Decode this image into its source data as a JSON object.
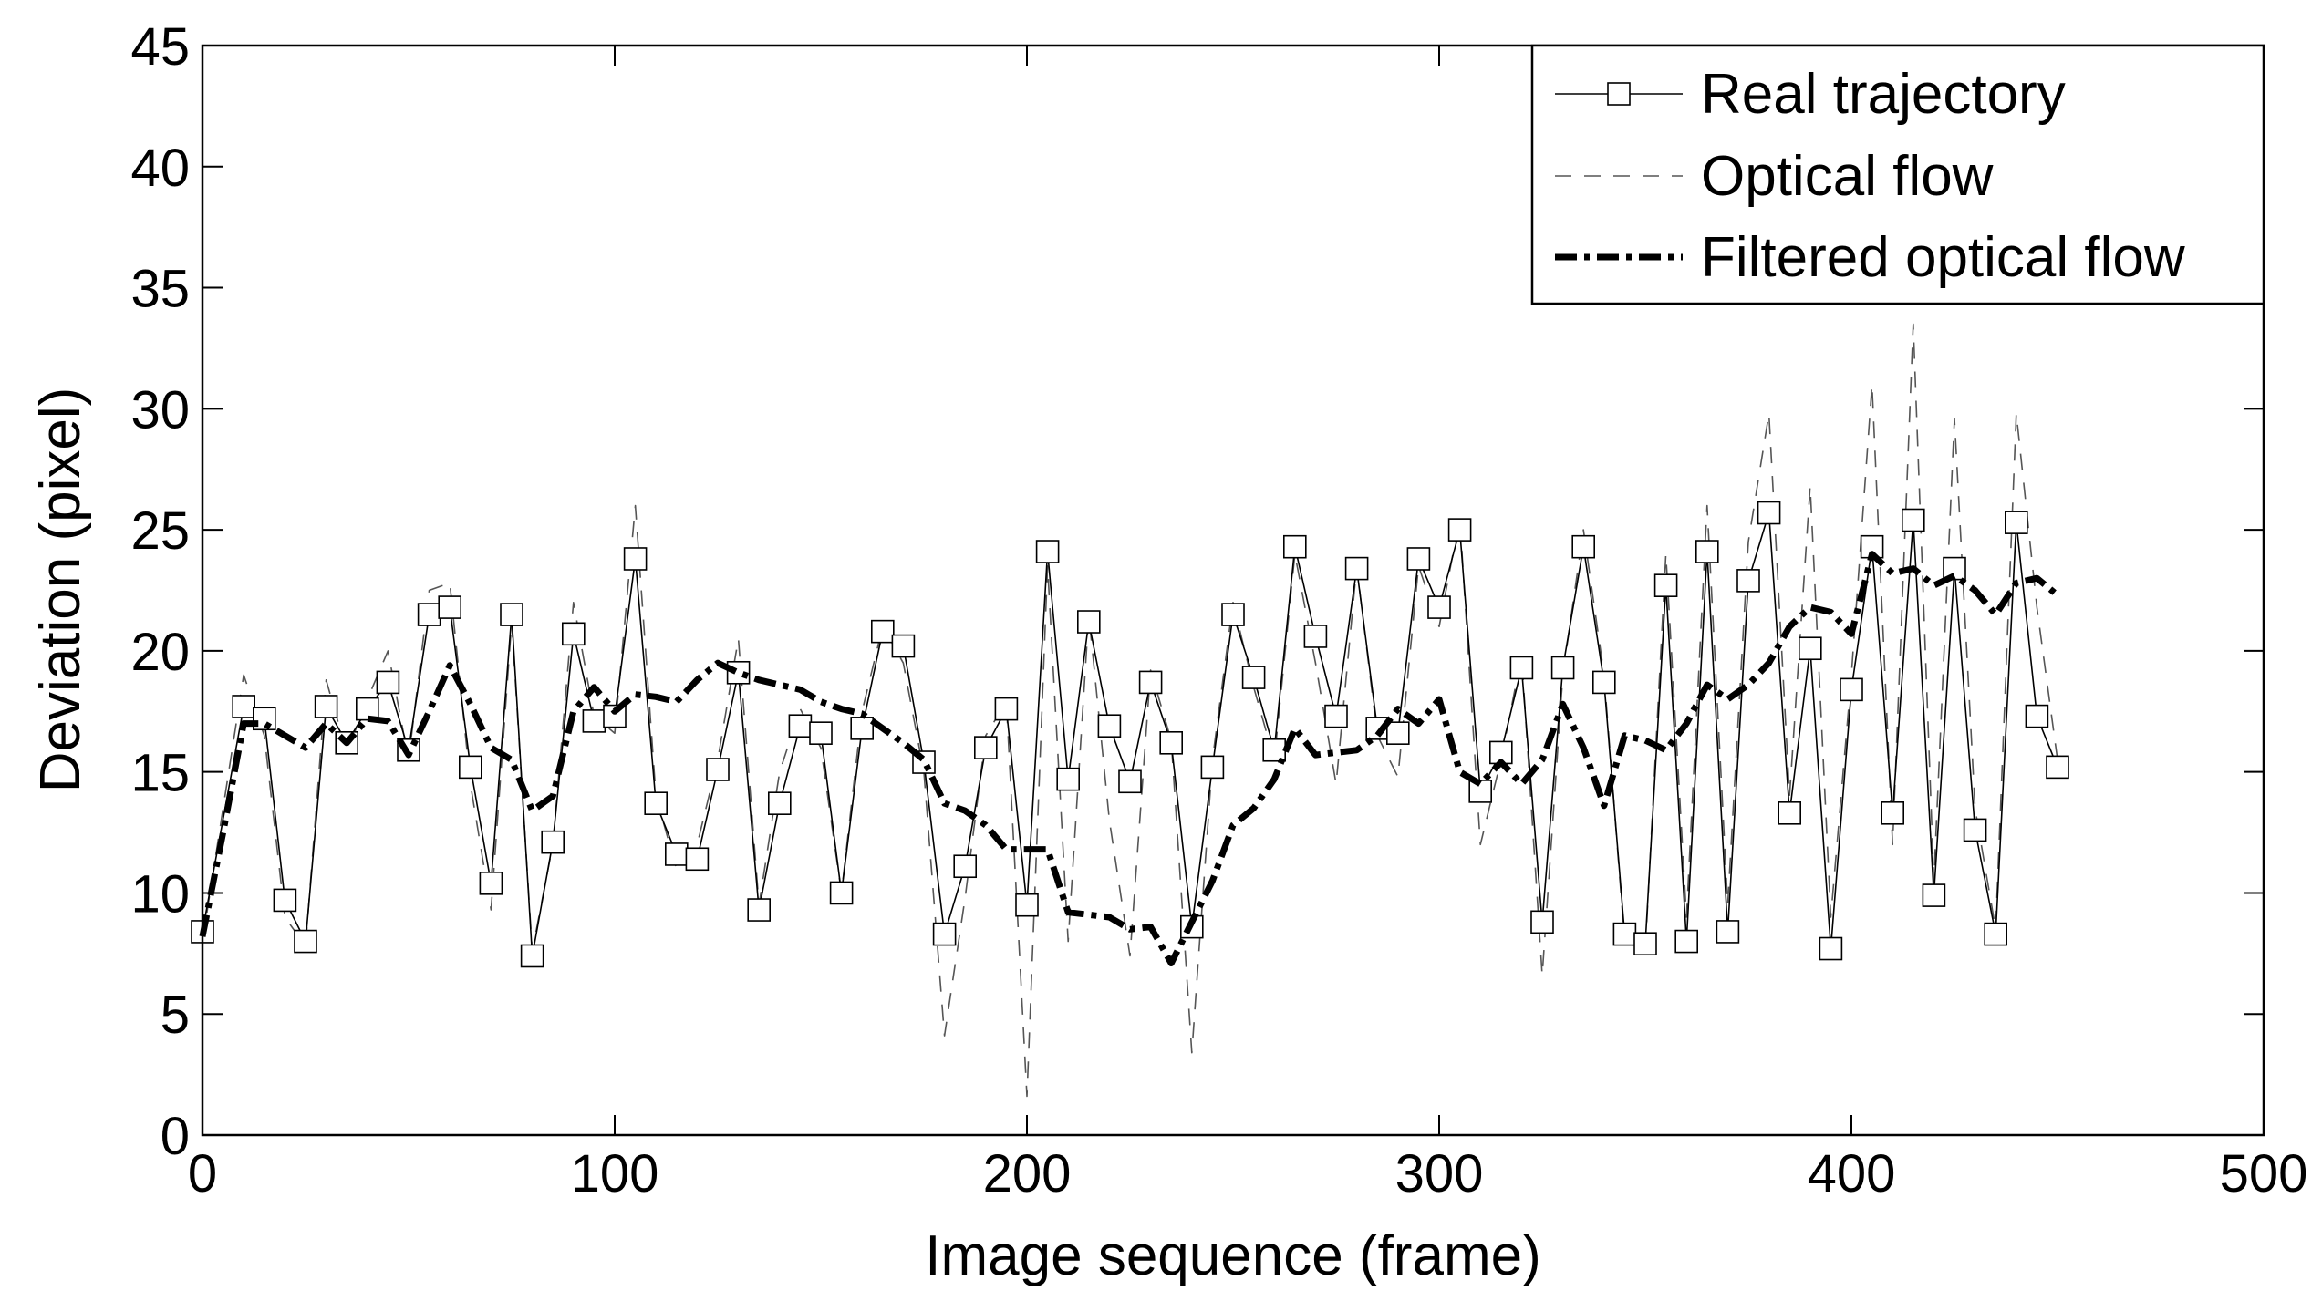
{
  "chart_data": {
    "type": "line",
    "title": "",
    "xlabel": "Image sequence (frame)",
    "ylabel": "Deviation (pixel)",
    "xlim": [
      0,
      500
    ],
    "ylim": [
      0,
      45
    ],
    "xticks": [
      "0",
      "100",
      "200",
      "300",
      "400",
      "500"
    ],
    "yticks": [
      "0",
      "5",
      "10",
      "15",
      "20",
      "25",
      "30",
      "35",
      "40",
      "45"
    ],
    "grid": false,
    "legend_position": "top-right",
    "series": [
      {
        "name": "Real trajectory",
        "style": "solid-square-markers",
        "color": "#000000",
        "x": [
          0,
          10,
          15,
          20,
          25,
          30,
          35,
          40,
          45,
          50,
          55,
          60,
          65,
          70,
          75,
          80,
          85,
          90,
          95,
          100,
          105,
          110,
          115,
          120,
          125,
          130,
          135,
          140,
          145,
          150,
          155,
          160,
          165,
          170,
          175,
          180,
          185,
          190,
          195,
          200,
          205,
          210,
          215,
          220,
          225,
          230,
          235,
          240,
          245,
          250,
          255,
          260,
          265,
          270,
          275,
          280,
          285,
          290,
          295,
          300,
          305,
          310,
          315,
          320,
          325,
          330,
          335,
          340,
          345,
          350,
          355,
          360,
          365,
          370,
          375,
          380,
          385,
          390,
          395,
          400,
          405,
          410,
          415,
          420,
          425,
          430,
          435,
          440,
          445,
          450
        ],
        "y": [
          8.4,
          17.7,
          17.2,
          9.7,
          8.0,
          17.7,
          16.2,
          17.6,
          18.7,
          15.9,
          21.5,
          21.8,
          15.2,
          10.4,
          21.5,
          7.4,
          12.1,
          20.7,
          17.1,
          17.3,
          23.8,
          13.7,
          11.6,
          11.4,
          15.1,
          19.1,
          9.3,
          13.7,
          16.9,
          16.6,
          10.0,
          16.8,
          20.8,
          20.2,
          15.4,
          8.3,
          11.1,
          16.0,
          17.6,
          9.5,
          24.1,
          14.7,
          21.2,
          16.9,
          14.6,
          18.7,
          16.2,
          8.6,
          15.2,
          21.5,
          18.9,
          15.9,
          24.3,
          20.6,
          17.3,
          23.4,
          16.8,
          16.6,
          23.8,
          21.8,
          25.0,
          14.2,
          15.8,
          19.3,
          8.8,
          19.3,
          24.3,
          18.7,
          8.3,
          7.9,
          22.7,
          8.0,
          24.1,
          8.4,
          22.9,
          25.7,
          13.3,
          20.1,
          7.7,
          18.4,
          24.3,
          13.3,
          25.4,
          9.9,
          23.4,
          12.6,
          8.3,
          25.3,
          17.3,
          15.2
        ]
      },
      {
        "name": "Optical flow",
        "style": "dashed",
        "color": "#555555",
        "x": [
          0,
          5,
          10,
          15,
          20,
          25,
          30,
          35,
          40,
          45,
          50,
          55,
          60,
          65,
          70,
          75,
          80,
          85,
          90,
          95,
          100,
          105,
          110,
          115,
          120,
          125,
          130,
          135,
          140,
          145,
          150,
          155,
          160,
          165,
          170,
          175,
          180,
          185,
          190,
          195,
          200,
          205,
          210,
          215,
          220,
          225,
          230,
          235,
          240,
          245,
          250,
          255,
          260,
          265,
          270,
          275,
          280,
          285,
          290,
          295,
          300,
          305,
          310,
          315,
          320,
          325,
          330,
          335,
          340,
          345,
          350,
          355,
          360,
          365,
          370,
          375,
          380,
          385,
          390,
          395,
          400,
          405,
          410,
          415,
          420,
          425,
          430,
          435,
          440,
          445,
          450
        ],
        "y": [
          8.0,
          13.5,
          19.0,
          16.5,
          9.0,
          7.8,
          18.8,
          15.8,
          18.0,
          20.0,
          15.5,
          22.5,
          22.8,
          14.5,
          9.3,
          21.2,
          7.6,
          12.0,
          22.0,
          17.3,
          16.6,
          26.0,
          14.0,
          11.0,
          12.0,
          15.5,
          20.5,
          9.5,
          15.0,
          17.6,
          16.0,
          10.0,
          17.5,
          21.0,
          19.5,
          15.0,
          4.1,
          9.8,
          16.5,
          17.9,
          1.6,
          23.5,
          8.0,
          21.5,
          13.0,
          7.4,
          19.2,
          16.3,
          3.4,
          15.5,
          22.0,
          18.5,
          15.5,
          24.0,
          19.5,
          14.5,
          23.5,
          16.5,
          14.8,
          23.5,
          21.0,
          25.5,
          12.0,
          15.5,
          19.8,
          6.6,
          19.0,
          25.0,
          19.0,
          8.0,
          7.6,
          24.0,
          9.0,
          26.0,
          9.5,
          24.5,
          29.8,
          14.0,
          26.8,
          9.0,
          19.0,
          31.0,
          12.0,
          33.5,
          10.5,
          29.6,
          13.5,
          8.5,
          29.8,
          21.8,
          15.5
        ]
      },
      {
        "name": "Filtered optical flow",
        "style": "thick-dash-dot",
        "color": "#000000",
        "x": [
          0,
          5,
          10,
          15,
          20,
          25,
          30,
          35,
          40,
          45,
          50,
          55,
          60,
          65,
          70,
          75,
          80,
          85,
          90,
          95,
          100,
          105,
          110,
          115,
          120,
          125,
          130,
          135,
          140,
          145,
          150,
          155,
          160,
          165,
          170,
          175,
          180,
          185,
          190,
          195,
          200,
          205,
          210,
          215,
          220,
          225,
          230,
          235,
          240,
          245,
          250,
          255,
          260,
          265,
          270,
          275,
          280,
          285,
          290,
          295,
          300,
          305,
          310,
          315,
          320,
          325,
          330,
          335,
          340,
          345,
          350,
          355,
          360,
          365,
          370,
          375,
          380,
          385,
          390,
          395,
          400,
          405,
          410,
          415,
          420,
          425,
          430,
          435,
          440,
          445,
          450
        ],
        "y": [
          8.2,
          12.5,
          17.0,
          17.0,
          16.5,
          16.0,
          17.0,
          16.2,
          17.2,
          17.1,
          15.7,
          17.5,
          19.4,
          17.8,
          16.0,
          15.5,
          13.4,
          14.0,
          17.5,
          18.5,
          17.5,
          18.2,
          18.1,
          17.9,
          18.8,
          19.5,
          19.1,
          18.8,
          18.6,
          18.4,
          17.9,
          17.6,
          17.4,
          16.8,
          16.2,
          15.5,
          13.7,
          13.4,
          12.8,
          11.8,
          11.8,
          11.8,
          9.2,
          9.1,
          9.0,
          8.5,
          8.6,
          7.1,
          8.8,
          10.5,
          12.8,
          13.5,
          14.7,
          16.8,
          15.7,
          15.8,
          15.9,
          16.5,
          17.6,
          17.0,
          18.0,
          15.0,
          14.5,
          15.4,
          14.5,
          15.5,
          17.8,
          16.0,
          13.6,
          16.5,
          16.3,
          15.9,
          17.0,
          18.6,
          18.0,
          18.6,
          19.5,
          21.0,
          21.8,
          21.6,
          20.7,
          24.0,
          23.2,
          23.4,
          22.7,
          23.1,
          22.5,
          21.5,
          22.8,
          23.0,
          22.3
        ]
      }
    ]
  }
}
